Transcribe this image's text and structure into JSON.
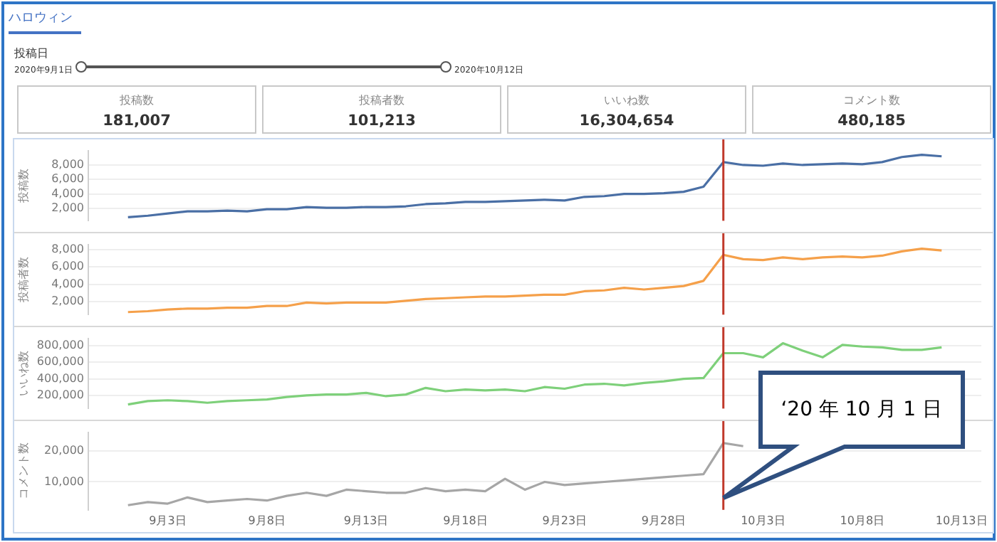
{
  "chart_data": [
    {
      "type": "other",
      "title": "ハロウィン",
      "annotations": [
        "投稿日",
        "2020年9月1日",
        "2020年10月12日"
      ]
    },
    {
      "type": "other",
      "title": "投稿数",
      "annotations": [
        "181,007"
      ]
    },
    {
      "type": "other",
      "title": "投稿者数",
      "annotations": [
        "101,213"
      ]
    },
    {
      "type": "other",
      "title": "いいね数",
      "annotations": [
        "16,304,654"
      ]
    },
    {
      "type": "other",
      "title": "コメント数",
      "annotations": [
        "480,185"
      ]
    },
    {
      "type": "line",
      "ylabel": "投稿数",
      "x": [
        "2020-09-01",
        "2020-09-02",
        "2020-09-03",
        "2020-09-04",
        "2020-09-05",
        "2020-09-06",
        "2020-09-07",
        "2020-09-08",
        "2020-09-09",
        "2020-09-10",
        "2020-09-11",
        "2020-09-12",
        "2020-09-13",
        "2020-09-14",
        "2020-09-15",
        "2020-09-16",
        "2020-09-17",
        "2020-09-18",
        "2020-09-19",
        "2020-09-20",
        "2020-09-21",
        "2020-09-22",
        "2020-09-23",
        "2020-09-24",
        "2020-09-25",
        "2020-09-26",
        "2020-09-27",
        "2020-09-28",
        "2020-09-29",
        "2020-09-30",
        "2020-10-01",
        "2020-10-02",
        "2020-10-03",
        "2020-10-04",
        "2020-10-05",
        "2020-10-06",
        "2020-10-07",
        "2020-10-08",
        "2020-10-09",
        "2020-10-10",
        "2020-10-11",
        "2020-10-12"
      ],
      "series": [
        {
          "color": "#4a6fa5",
          "values": [
            800,
            1000,
            1300,
            1600,
            1600,
            1700,
            1600,
            1900,
            1900,
            2200,
            2100,
            2100,
            2200,
            2200,
            2300,
            2600,
            2700,
            2900,
            2900,
            3000,
            3100,
            3200,
            3100,
            3600,
            3700,
            4000,
            4000,
            4100,
            4300,
            5000,
            8400,
            8000,
            7900,
            8200,
            8000,
            8100,
            8200,
            8100,
            8400,
            9100,
            9400,
            9200
          ]
        }
      ],
      "xlim": [
        "2020-08-30",
        "2020-10-14"
      ],
      "ylim": [
        300,
        10000
      ],
      "yticks": [
        {
          "value": 2000,
          "label": "2,000"
        },
        {
          "value": 4000,
          "label": "4,000"
        },
        {
          "value": 6000,
          "label": "6,000"
        },
        {
          "value": 8000,
          "label": "8,000"
        }
      ],
      "tick_labels": "y",
      "grid": "y",
      "legend": false,
      "marker": "none",
      "line_style": "solid",
      "ref_lines": [
        {
          "axis": "x",
          "value": "2020-10-01",
          "color": "#c0392b"
        }
      ]
    },
    {
      "type": "line",
      "ylabel": "投稿者数",
      "x": [
        "2020-09-01",
        "2020-09-02",
        "2020-09-03",
        "2020-09-04",
        "2020-09-05",
        "2020-09-06",
        "2020-09-07",
        "2020-09-08",
        "2020-09-09",
        "2020-09-10",
        "2020-09-11",
        "2020-09-12",
        "2020-09-13",
        "2020-09-14",
        "2020-09-15",
        "2020-09-16",
        "2020-09-17",
        "2020-09-18",
        "2020-09-19",
        "2020-09-20",
        "2020-09-21",
        "2020-09-22",
        "2020-09-23",
        "2020-09-24",
        "2020-09-25",
        "2020-09-26",
        "2020-09-27",
        "2020-09-28",
        "2020-09-29",
        "2020-09-30",
        "2020-10-01",
        "2020-10-02",
        "2020-10-03",
        "2020-10-04",
        "2020-10-05",
        "2020-10-06",
        "2020-10-07",
        "2020-10-08",
        "2020-10-09",
        "2020-10-10",
        "2020-10-11",
        "2020-10-12"
      ],
      "series": [
        {
          "color": "#f5a04a",
          "values": [
            800,
            900,
            1100,
            1200,
            1200,
            1300,
            1300,
            1500,
            1500,
            1900,
            1800,
            1900,
            1900,
            1900,
            2100,
            2300,
            2400,
            2500,
            2600,
            2600,
            2700,
            2800,
            2800,
            3200,
            3300,
            3600,
            3400,
            3600,
            3800,
            4400,
            7400,
            6900,
            6800,
            7100,
            6900,
            7100,
            7200,
            7100,
            7300,
            7800,
            8100,
            7900
          ]
        }
      ],
      "xlim": [
        "2020-08-30",
        "2020-10-14"
      ],
      "ylim": [
        500,
        8600
      ],
      "yticks": [
        {
          "value": 2000,
          "label": "2,000"
        },
        {
          "value": 4000,
          "label": "4,000"
        },
        {
          "value": 6000,
          "label": "6,000"
        },
        {
          "value": 8000,
          "label": "8,000"
        }
      ],
      "tick_labels": "y",
      "grid": "y",
      "legend": false,
      "marker": "none",
      "line_style": "solid",
      "ref_lines": [
        {
          "axis": "x",
          "value": "2020-10-01",
          "color": "#c0392b"
        }
      ]
    },
    {
      "type": "line",
      "ylabel": "いいね数",
      "x": [
        "2020-09-01",
        "2020-09-02",
        "2020-09-03",
        "2020-09-04",
        "2020-09-05",
        "2020-09-06",
        "2020-09-07",
        "2020-09-08",
        "2020-09-09",
        "2020-09-10",
        "2020-09-11",
        "2020-09-12",
        "2020-09-13",
        "2020-09-14",
        "2020-09-15",
        "2020-09-16",
        "2020-09-17",
        "2020-09-18",
        "2020-09-19",
        "2020-09-20",
        "2020-09-21",
        "2020-09-22",
        "2020-09-23",
        "2020-09-24",
        "2020-09-25",
        "2020-09-26",
        "2020-09-27",
        "2020-09-28",
        "2020-09-29",
        "2020-09-30",
        "2020-10-01",
        "2020-10-02",
        "2020-10-03",
        "2020-10-04",
        "2020-10-05",
        "2020-10-06",
        "2020-10-07",
        "2020-10-08",
        "2020-10-09",
        "2020-10-10",
        "2020-10-11",
        "2020-10-12"
      ],
      "series": [
        {
          "color": "#7ed07a",
          "values": [
            90000,
            130000,
            140000,
            130000,
            110000,
            130000,
            140000,
            150000,
            180000,
            200000,
            210000,
            210000,
            230000,
            190000,
            210000,
            290000,
            250000,
            270000,
            260000,
            270000,
            250000,
            300000,
            280000,
            330000,
            340000,
            320000,
            350000,
            370000,
            400000,
            410000,
            710000,
            710000,
            660000,
            830000,
            740000,
            660000,
            810000,
            790000,
            780000,
            750000,
            750000,
            780000
          ]
        }
      ],
      "xlim": [
        "2020-08-30",
        "2020-10-14"
      ],
      "ylim": [
        40000,
        890000
      ],
      "yticks": [
        {
          "value": 200000,
          "label": "200,000"
        },
        {
          "value": 400000,
          "label": "400,000"
        },
        {
          "value": 600000,
          "label": "600,000"
        },
        {
          "value": 800000,
          "label": "800,000"
        }
      ],
      "tick_labels": "y",
      "grid": "y",
      "legend": false,
      "marker": "none",
      "line_style": "solid",
      "ref_lines": [
        {
          "axis": "x",
          "value": "2020-10-01",
          "color": "#c0392b"
        }
      ]
    },
    {
      "type": "line",
      "ylabel": "コメント数",
      "series": [
        {
          "color": "#a6a6a6",
          "x": [
            "2020-09-01",
            "2020-09-02",
            "2020-09-03",
            "2020-09-04",
            "2020-09-05",
            "2020-09-06",
            "2020-09-07",
            "2020-09-08",
            "2020-09-09",
            "2020-09-10",
            "2020-09-11",
            "2020-09-12",
            "2020-09-13",
            "2020-09-14",
            "2020-09-15",
            "2020-09-16",
            "2020-09-17",
            "2020-09-18",
            "2020-09-19",
            "2020-09-20",
            "2020-09-21",
            "2020-09-22",
            "2020-09-23",
            "2020-09-24",
            "2020-09-25",
            "2020-09-26",
            "2020-09-27",
            "2020-09-28",
            "2020-09-29",
            "2020-09-30",
            "2020-10-01",
            "2020-10-02"
          ],
          "values": [
            2500,
            3500,
            3000,
            5000,
            3500,
            4000,
            4500,
            4000,
            5500,
            6500,
            5500,
            7500,
            7000,
            6500,
            6500,
            8000,
            7000,
            7500,
            7000,
            11000,
            7500,
            10000,
            9000,
            9500,
            10000,
            10500,
            11000,
            11500,
            12000,
            12500,
            22500,
            21500
          ]
        }
      ],
      "xlim": [
        "2020-08-30",
        "2020-10-14"
      ],
      "xticks": [
        {
          "value": "2020-09-03",
          "label": "9月3日"
        },
        {
          "value": "2020-09-08",
          "label": "9月8日"
        },
        {
          "value": "2020-09-13",
          "label": "9月13日"
        },
        {
          "value": "2020-09-18",
          "label": "9月18日"
        },
        {
          "value": "2020-09-23",
          "label": "9月23日"
        },
        {
          "value": "2020-09-28",
          "label": "9月28日"
        },
        {
          "value": "2020-10-03",
          "label": "10月3日"
        },
        {
          "value": "2020-10-08",
          "label": "10月8日"
        },
        {
          "value": "2020-10-13",
          "label": "10月13日"
        }
      ],
      "ylim": [
        1000,
        26000
      ],
      "yticks": [
        {
          "value": 10000,
          "label": "10,000"
        },
        {
          "value": 20000,
          "label": "20,000"
        }
      ],
      "grid": "y",
      "legend": false,
      "marker": "none",
      "line_style": "solid",
      "ref_lines": [
        {
          "axis": "x",
          "value": "2020-10-01",
          "color": "#c0392b",
          "label": "‘20 年 10 月 1 日"
        }
      ]
    }
  ]
}
